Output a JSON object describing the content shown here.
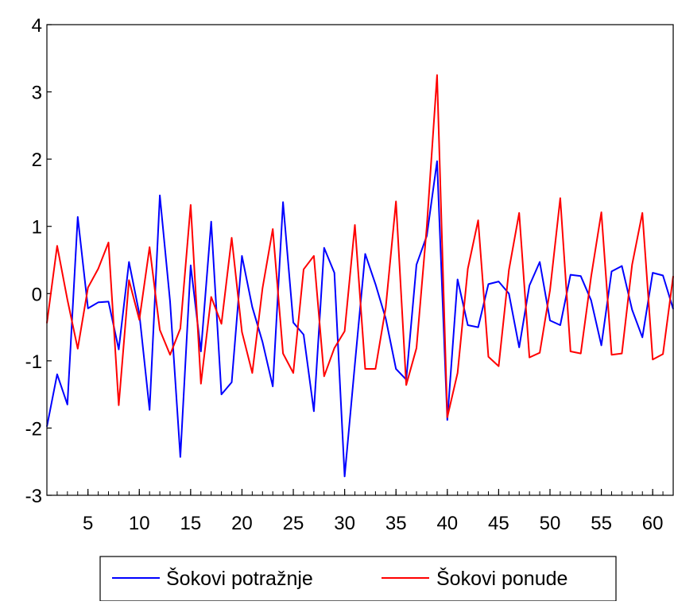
{
  "chart_data": {
    "type": "line",
    "title": "",
    "xlabel": "",
    "ylabel": "",
    "xlim": [
      1,
      62
    ],
    "ylim": [
      -3,
      4
    ],
    "x_ticks": [
      5,
      10,
      15,
      20,
      25,
      30,
      35,
      40,
      45,
      50,
      55,
      60
    ],
    "y_ticks": [
      4,
      3,
      2,
      1,
      0,
      -1,
      -2,
      -3
    ],
    "grid": false,
    "legend_position": "bottom-center",
    "x": [
      1,
      2,
      3,
      4,
      5,
      6,
      7,
      8,
      9,
      10,
      11,
      12,
      13,
      14,
      15,
      16,
      17,
      18,
      19,
      20,
      21,
      22,
      23,
      24,
      25,
      26,
      27,
      28,
      29,
      30,
      31,
      32,
      33,
      34,
      35,
      36,
      37,
      38,
      39,
      40,
      41,
      42,
      43,
      44,
      45,
      46,
      47,
      48,
      49,
      50,
      51,
      52,
      53,
      54,
      55,
      56,
      57,
      58,
      59,
      60,
      61,
      62
    ],
    "series": [
      {
        "name": "Šokovi potražnje",
        "color": "#0000ff",
        "values": [
          -1.98,
          -1.2,
          -1.65,
          1.14,
          -0.22,
          -0.13,
          -0.12,
          -0.83,
          0.47,
          -0.3,
          -1.73,
          1.46,
          -0.12,
          -2.43,
          0.42,
          -0.86,
          1.07,
          -1.5,
          -1.32,
          0.56,
          -0.2,
          -0.72,
          -1.38,
          1.36,
          -0.43,
          -0.61,
          -1.75,
          0.68,
          0.31,
          -2.72,
          -1.05,
          0.59,
          0.14,
          -0.37,
          -1.12,
          -1.28,
          0.43,
          0.86,
          1.97,
          -1.88,
          0.21,
          -0.47,
          -0.5,
          0.14,
          0.18,
          0.0,
          -0.8,
          0.12,
          0.47,
          -0.4,
          -0.47,
          0.28,
          0.26,
          -0.1,
          -0.77,
          0.33,
          0.41,
          -0.24,
          -0.65,
          0.31,
          0.27,
          -0.23
        ]
      },
      {
        "name": "Šokovi ponude",
        "color": "#ff0000",
        "values": [
          -0.44,
          0.71,
          -0.09,
          -0.82,
          0.09,
          0.37,
          0.76,
          -1.66,
          0.2,
          -0.39,
          0.69,
          -0.54,
          -0.91,
          -0.52,
          1.32,
          -1.34,
          -0.05,
          -0.45,
          0.83,
          -0.57,
          -1.18,
          0.08,
          0.96,
          -0.89,
          -1.18,
          0.36,
          0.56,
          -1.23,
          -0.81,
          -0.56,
          1.02,
          -1.12,
          -1.12,
          -0.21,
          1.37,
          -1.36,
          -0.81,
          1.0,
          3.25,
          -1.84,
          -1.18,
          0.37,
          1.09,
          -0.94,
          -1.08,
          0.35,
          1.2,
          -0.95,
          -0.88,
          0.05,
          1.42,
          -0.86,
          -0.89,
          0.25,
          1.21,
          -0.91,
          -0.89,
          0.43,
          1.2,
          -0.98,
          -0.9,
          0.26
        ]
      }
    ]
  }
}
